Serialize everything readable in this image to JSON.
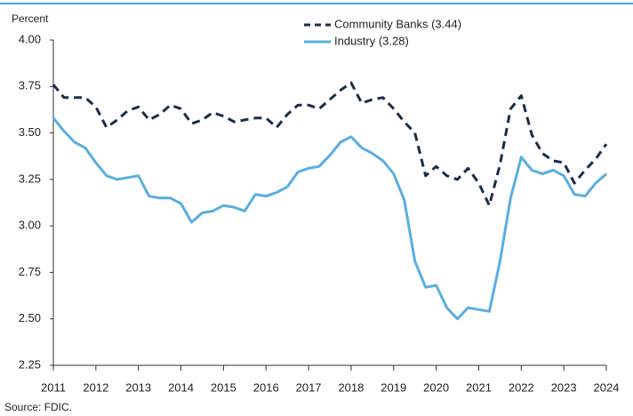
{
  "chart_data": {
    "type": "line",
    "y_label": "Percent",
    "source": "Source: FDIC.",
    "categories": [
      "2011",
      null,
      null,
      null,
      "2012",
      null,
      null,
      null,
      "2013",
      null,
      null,
      null,
      "2014",
      null,
      null,
      null,
      "2015",
      null,
      null,
      null,
      "2016",
      null,
      null,
      null,
      "2017",
      null,
      null,
      null,
      "2018",
      null,
      null,
      null,
      "2019",
      null,
      null,
      null,
      "2020",
      null,
      null,
      null,
      "2021",
      null,
      null,
      null,
      "2022",
      null,
      null,
      null,
      "2023",
      null,
      null,
      null,
      "2024"
    ],
    "series": [
      {
        "name": "Community Banks (3.44)",
        "color": "#1b2d49",
        "dashed": true,
        "values": [
          3.76,
          3.69,
          3.69,
          3.69,
          3.64,
          3.53,
          3.57,
          3.62,
          3.64,
          3.57,
          3.6,
          3.65,
          3.63,
          3.55,
          3.57,
          3.61,
          3.59,
          3.56,
          3.57,
          3.58,
          3.58,
          3.53,
          3.6,
          3.65,
          3.65,
          3.63,
          3.68,
          3.73,
          3.77,
          3.66,
          3.68,
          3.69,
          3.63,
          3.56,
          3.5,
          3.27,
          3.32,
          3.27,
          3.25,
          3.31,
          3.23,
          3.11,
          3.33,
          3.63,
          3.7,
          3.49,
          3.39,
          3.35,
          3.34,
          3.23,
          3.3,
          3.36,
          3.44
        ]
      },
      {
        "name": "Industry (3.28)",
        "color": "#5aaee0",
        "dashed": false,
        "values": [
          3.58,
          3.51,
          3.45,
          3.42,
          3.34,
          3.27,
          3.25,
          3.26,
          3.27,
          3.16,
          3.15,
          3.15,
          3.12,
          3.02,
          3.07,
          3.08,
          3.11,
          3.1,
          3.08,
          3.17,
          3.16,
          3.18,
          3.21,
          3.29,
          3.31,
          3.32,
          3.38,
          3.45,
          3.48,
          3.42,
          3.39,
          3.35,
          3.28,
          3.14,
          2.81,
          2.67,
          2.68,
          2.56,
          2.5,
          2.56,
          2.55,
          2.54,
          2.81,
          3.15,
          3.37,
          3.3,
          3.28,
          3.3,
          3.27,
          3.17,
          3.16,
          3.23,
          3.28
        ]
      }
    ],
    "ylim": [
      2.25,
      4.0
    ],
    "yticks": [
      2.25,
      {
        "value": 2.5,
        "label": "2.50"
      },
      2.75,
      {
        "value": 3.0,
        "label": "3.00"
      },
      3.25,
      {
        "value": 3.5,
        "label": "3.50"
      },
      3.75,
      {
        "value": 4.0,
        "label": "4.00"
      }
    ],
    "grid": false
  }
}
